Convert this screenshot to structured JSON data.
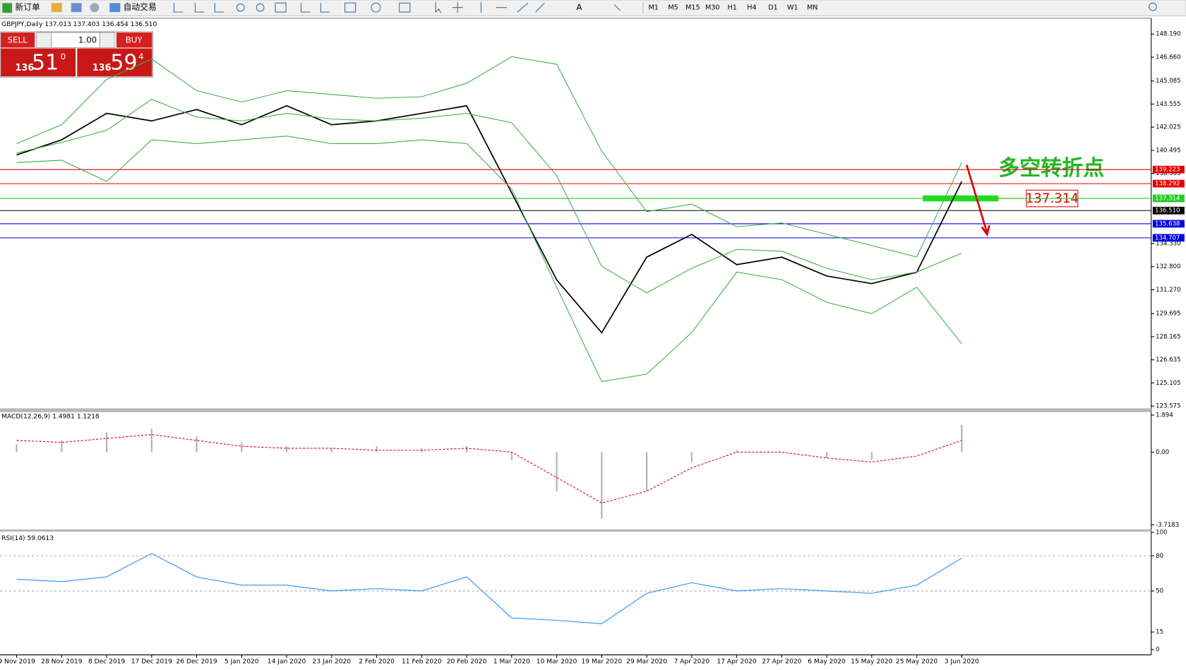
{
  "toolbar": {
    "new_order": "新订单",
    "auto_trading": "自动交易",
    "timeframes": [
      "M1",
      "M5",
      "M15",
      "M30",
      "H1",
      "H4",
      "D1",
      "W1",
      "MN"
    ]
  },
  "trade_panel": {
    "sell": "SELL",
    "buy": "BUY",
    "volume": "1.00",
    "sell_price": [
      "136",
      "51",
      "0"
    ],
    "buy_price": [
      "136",
      "59",
      "4"
    ]
  },
  "chart_data": [
    {
      "type": "line",
      "title": "GBPJPY,Daily  137.013 137.403 136.454 136.510",
      "categories": [
        "9 Nov 2019",
        "28 Nov 2019",
        "8 Dec 2019",
        "17 Dec 2019",
        "26 Dec 2019",
        "5 Jan 2020",
        "14 Jan 2020",
        "23 Jan 2020",
        "2 Feb 2020",
        "11 Feb 2020",
        "20 Feb 2020",
        "1 Mar 2020",
        "10 Mar 2020",
        "19 Mar 2020",
        "29 Mar 2020",
        "7 Apr 2020",
        "17 Apr 2020",
        "27 Apr 2020",
        "6 May 2020",
        "15 May 2020",
        "25 May 2020",
        "3 Jun 2020"
      ],
      "series": [
        {
          "color": "#000000",
          "style": "line",
          "width": 1.6,
          "values": [
            140.19,
            141.19,
            142.94,
            142.44,
            143.19,
            142.19,
            143.44,
            142.19,
            142.44,
            142.94,
            143.44,
            137.68,
            131.93,
            128.43,
            133.43,
            134.93,
            132.93,
            133.43,
            132.18,
            131.68,
            132.43,
            138.43
          ]
        },
        {
          "color": "#3cb043",
          "style": "line",
          "width": 1,
          "values": [
            140.94,
            142.19,
            145.19,
            146.54,
            144.44,
            143.69,
            144.44,
            144.19,
            143.94,
            144.04,
            144.94,
            146.69,
            146.19,
            140.44,
            136.44,
            136.94,
            135.44,
            135.69,
            134.94,
            134.19,
            133.44,
            139.69
          ]
        },
        {
          "color": "#3cb043",
          "style": "line",
          "width": 1,
          "values": [
            140.32,
            141.02,
            141.82,
            143.87,
            142.69,
            142.44,
            142.94,
            142.57,
            142.44,
            142.62,
            142.94,
            142.32,
            138.82,
            132.82,
            131.07,
            132.69,
            133.94,
            133.82,
            132.69,
            131.94,
            132.44,
            133.69
          ]
        },
        {
          "color": "#3cb043",
          "style": "line",
          "width": 1,
          "values": [
            139.69,
            139.84,
            138.44,
            141.19,
            140.94,
            141.19,
            141.44,
            140.94,
            140.94,
            141.19,
            140.94,
            137.94,
            131.44,
            125.19,
            125.69,
            128.44,
            132.44,
            131.94,
            130.44,
            129.69,
            131.44,
            127.69
          ]
        }
      ],
      "ylim": [
        123.425,
        149.24
      ],
      "yticks": [
        {
          "value": 148.19,
          "label": "148.190"
        },
        {
          "value": 146.66,
          "label": "146.660"
        },
        145.085,
        143.555,
        142.025,
        140.495,
        138.965,
        {
          "value": 134.33,
          "label": "134.330"
        },
        {
          "value": 132.8,
          "label": "132.800"
        },
        {
          "value": 131.27,
          "label": "131.270"
        },
        129.695,
        128.165,
        126.635,
        125.105,
        123.575
      ],
      "levels": [
        {
          "value": 139.223,
          "color": "#e00000"
        },
        {
          "value": 138.292,
          "color": "#e00000"
        },
        {
          "value": 137.314,
          "color": "#22cc22"
        },
        {
          "value": 136.51,
          "label": "136.510",
          "color": "#000000"
        },
        {
          "value": 135.638,
          "color": "#0000dd"
        },
        {
          "value": 134.707,
          "color": "#0000dd"
        }
      ],
      "level_labels": true,
      "annotations": {
        "turning_point": "多空转折点",
        "price_label": "137.314"
      }
    },
    {
      "type": "line",
      "title": "MACD(12,26,9) 1.4981 1.1218",
      "series": [
        {
          "color": "#b0b0b0",
          "style": "histogram",
          "values": [
            0.4,
            0.6,
            1.0,
            1.2,
            0.8,
            0.5,
            0.3,
            0.2,
            0.3,
            0.2,
            0.3,
            -0.4,
            -2.0,
            -3.4,
            -2.0,
            -0.5,
            0.1,
            0.0,
            -0.3,
            -0.4,
            0.0,
            1.4
          ]
        },
        {
          "color": "#e00000",
          "style": "dashed",
          "width": 1,
          "values": [
            0.6,
            0.5,
            0.7,
            0.9,
            0.6,
            0.3,
            0.2,
            0.2,
            0.1,
            0.1,
            0.2,
            0.0,
            -1.3,
            -2.6,
            -2.0,
            -0.8,
            0.0,
            0.0,
            -0.3,
            -0.5,
            -0.2,
            0.6
          ]
        }
      ],
      "ylim": [
        -3.95,
        2.01
      ],
      "yticks": [
        1.894,
        {
          "value": 0,
          "label": "0.00"
        },
        -3.7183
      ]
    },
    {
      "type": "line",
      "title": "RSI(14) 59.0613",
      "series": [
        {
          "color": "#1e90ff",
          "style": "line",
          "width": 1,
          "values": [
            60,
            58,
            62,
            82,
            62,
            55,
            55,
            50,
            52,
            50,
            62,
            27,
            25,
            22,
            48,
            57,
            50,
            52,
            50,
            48,
            55,
            78
          ]
        }
      ],
      "ylim": [
        0,
        100
      ],
      "yticks": [
        100,
        80,
        50,
        15,
        0
      ],
      "levels": [
        {
          "value": 80,
          "color": "#aaaaaa"
        },
        {
          "value": 50,
          "color": "#aaaaaa"
        }
      ]
    }
  ]
}
